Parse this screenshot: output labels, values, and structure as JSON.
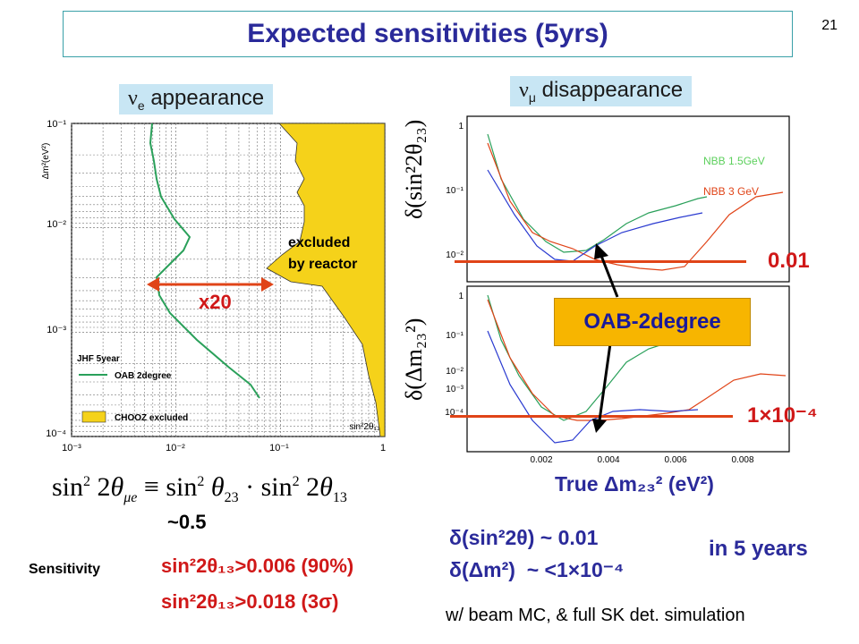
{
  "slide": {
    "title": "Expected sensitivities (5yrs)",
    "page_number": "21"
  },
  "left_panel": {
    "label_greek": "ν",
    "label_sub": "e",
    "label_text": " appearance",
    "y_axis_label": "Δm²(eV²)",
    "x_axis_label": "sin²2θ₁₃",
    "x_ticks": [
      "10⁻³",
      "10⁻²",
      "10⁻¹",
      "1"
    ],
    "y_ticks": [
      "10⁻¹",
      "10⁻²",
      "10⁻³",
      "10⁻⁴"
    ],
    "legend_title": "JHF 5year",
    "legend_items": [
      "OAB 2degree",
      "CHOOZ excluded"
    ],
    "excluded_line1": "excluded",
    "excluded_line2": "by reactor",
    "factor_label": "x20",
    "formula": "sin² 2θμe ≡ sin² θ23 · sin² 2θ13",
    "approx": "~0.5",
    "sensitivity_label": "Sensitivity",
    "sens_line1": "sin²2θ₁₃>0.006 (90%)",
    "sens_line2": "sin²2θ₁₃>0.018 (3σ)"
  },
  "right_panel": {
    "label_greek": "ν",
    "label_sub": "μ",
    "label_text": " disappearance",
    "upper_ylabel": "δ(sin²2θ₂₃)",
    "lower_ylabel": "δ(Δm₂₃²)",
    "legend_green": "NBB 1.5GeV",
    "legend_red": "NBB 3 GeV",
    "upper_y_ticks": [
      "1",
      "10⁻¹",
      "10⁻²"
    ],
    "lower_y_ticks": [
      "1",
      "10⁻¹",
      "10⁻²",
      "10⁻³",
      "10⁻⁴"
    ],
    "x_ticks": [
      "0.002",
      "0.004",
      "0.006",
      "0.008"
    ],
    "line_upper_label": "0.01",
    "line_lower_label": "1×10⁻⁴",
    "oab_box": "OAB-2degree",
    "x_axis_title": "True Δm₂₃² (eV²)",
    "result1": "δ(sin²2θ) ~ 0.01",
    "result2": "δ(Δm²)  ~ <1×10⁻⁴",
    "years": "in 5 years",
    "footnote": "w/ beam MC, & full SK det. simulation"
  },
  "colors": {
    "title": "#2a2a9a",
    "label_bg": "#c8e6f4",
    "reactor_yellow": "#f5d21a",
    "oab_green": "#2aa05a",
    "red_line": "#e04418",
    "oab_box": "#f7b500"
  }
}
